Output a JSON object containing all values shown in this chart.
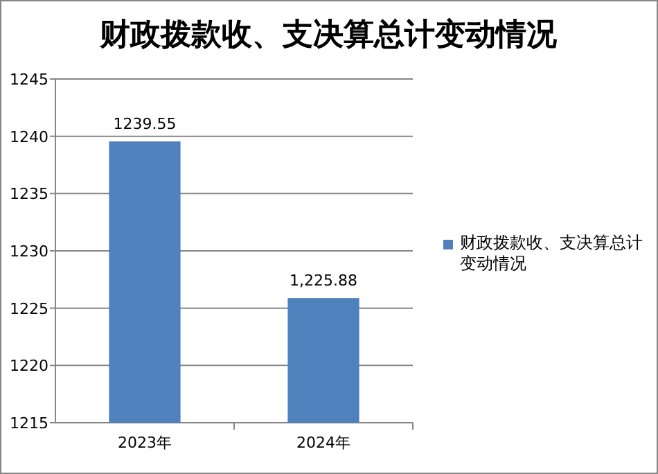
{
  "chart_data": {
    "type": "bar",
    "title": "财政拨款收、支决算总计变动情况",
    "categories": [
      "2023年",
      "2024年"
    ],
    "series": [
      {
        "name": "财政拨款收、支决算总计变动情况",
        "color": "#4f81bd",
        "values": [
          1239.55,
          1225.88
        ],
        "value_labels": [
          "1239.55",
          "1,225.88"
        ]
      }
    ],
    "ylim": [
      1215,
      1245
    ],
    "yticks": [
      1215,
      1220,
      1225,
      1230,
      1235,
      1240,
      1245
    ],
    "grid": "y",
    "legend": "right"
  }
}
